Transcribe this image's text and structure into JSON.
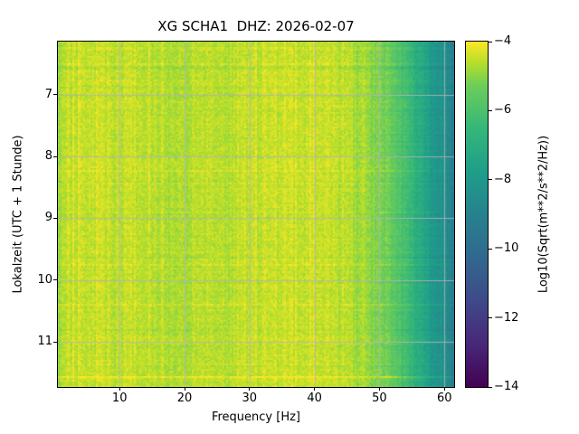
{
  "figure": {
    "title": "XG SCHA1  DHZ: 2026-02-07",
    "xlabel": "Frequency [Hz]",
    "ylabel": "Lokalzeit (UTC + 1 Stunde)",
    "colorbar_label": "Log10(Sqrt(m**2/s**2/Hz))"
  },
  "chart_data": {
    "type": "heatmap",
    "title": "XG SCHA1  DHZ: 2026-02-07",
    "station": "XG SCHA1",
    "channel": "DHZ",
    "date": "2026-02-07",
    "xlabel": "Frequency [Hz]",
    "ylabel": "Lokalzeit (UTC + 1 Stunde)",
    "xlim": [
      0.5,
      61.5
    ],
    "ylim": [
      6.14,
      11.73
    ],
    "grid": true,
    "grid_color": "#b4b4b4",
    "x_ticks": [
      {
        "value": 10,
        "label": "10"
      },
      {
        "value": 20,
        "label": "20"
      },
      {
        "value": 30,
        "label": "30"
      },
      {
        "value": 40,
        "label": "40"
      },
      {
        "value": 50,
        "label": "50"
      },
      {
        "value": 60,
        "label": "60"
      }
    ],
    "y_ticks": [
      {
        "value": 7,
        "label": "7"
      },
      {
        "value": 8,
        "label": "8"
      },
      {
        "value": 9,
        "label": "9"
      },
      {
        "value": 10,
        "label": "10"
      },
      {
        "value": 11,
        "label": "11"
      }
    ],
    "colorbar": {
      "label": "Log10(Sqrt(m**2/s**2/Hz))",
      "vmin": -14,
      "vmax": -4,
      "ticks": [
        {
          "value": -4,
          "label": "−4"
        },
        {
          "value": -6,
          "label": "−6"
        },
        {
          "value": -8,
          "label": "−8"
        },
        {
          "value": -10,
          "label": "−10"
        },
        {
          "value": -12,
          "label": "−12"
        },
        {
          "value": -14,
          "label": "−14"
        }
      ],
      "colormap": "viridis",
      "stops": [
        [
          0.0,
          "#440154"
        ],
        [
          0.125,
          "#482878"
        ],
        [
          0.25,
          "#3e4a89"
        ],
        [
          0.375,
          "#31688e"
        ],
        [
          0.5,
          "#26828e"
        ],
        [
          0.625,
          "#1f9e89"
        ],
        [
          0.75,
          "#35b779"
        ],
        [
          0.875,
          "#6ece58"
        ],
        [
          0.9375,
          "#b5de2b"
        ],
        [
          1.0,
          "#fde725"
        ]
      ]
    },
    "freq_profile": [
      [
        0.5,
        -5.0
      ],
      [
        1.2,
        -4.6
      ],
      [
        3,
        -4.45
      ],
      [
        6,
        -4.4
      ],
      [
        9,
        -4.5
      ],
      [
        13,
        -4.45
      ],
      [
        17,
        -4.65
      ],
      [
        22,
        -4.6
      ],
      [
        27,
        -4.55
      ],
      [
        32,
        -4.5
      ],
      [
        37,
        -4.45
      ],
      [
        42,
        -4.45
      ],
      [
        45,
        -4.6
      ],
      [
        48,
        -4.85
      ],
      [
        51,
        -5.25
      ],
      [
        53,
        -5.8
      ],
      [
        55,
        -6.6
      ],
      [
        57,
        -7.4
      ],
      [
        59,
        -8.1
      ],
      [
        60.5,
        -8.6
      ],
      [
        61.5,
        -9.3
      ]
    ]
  }
}
